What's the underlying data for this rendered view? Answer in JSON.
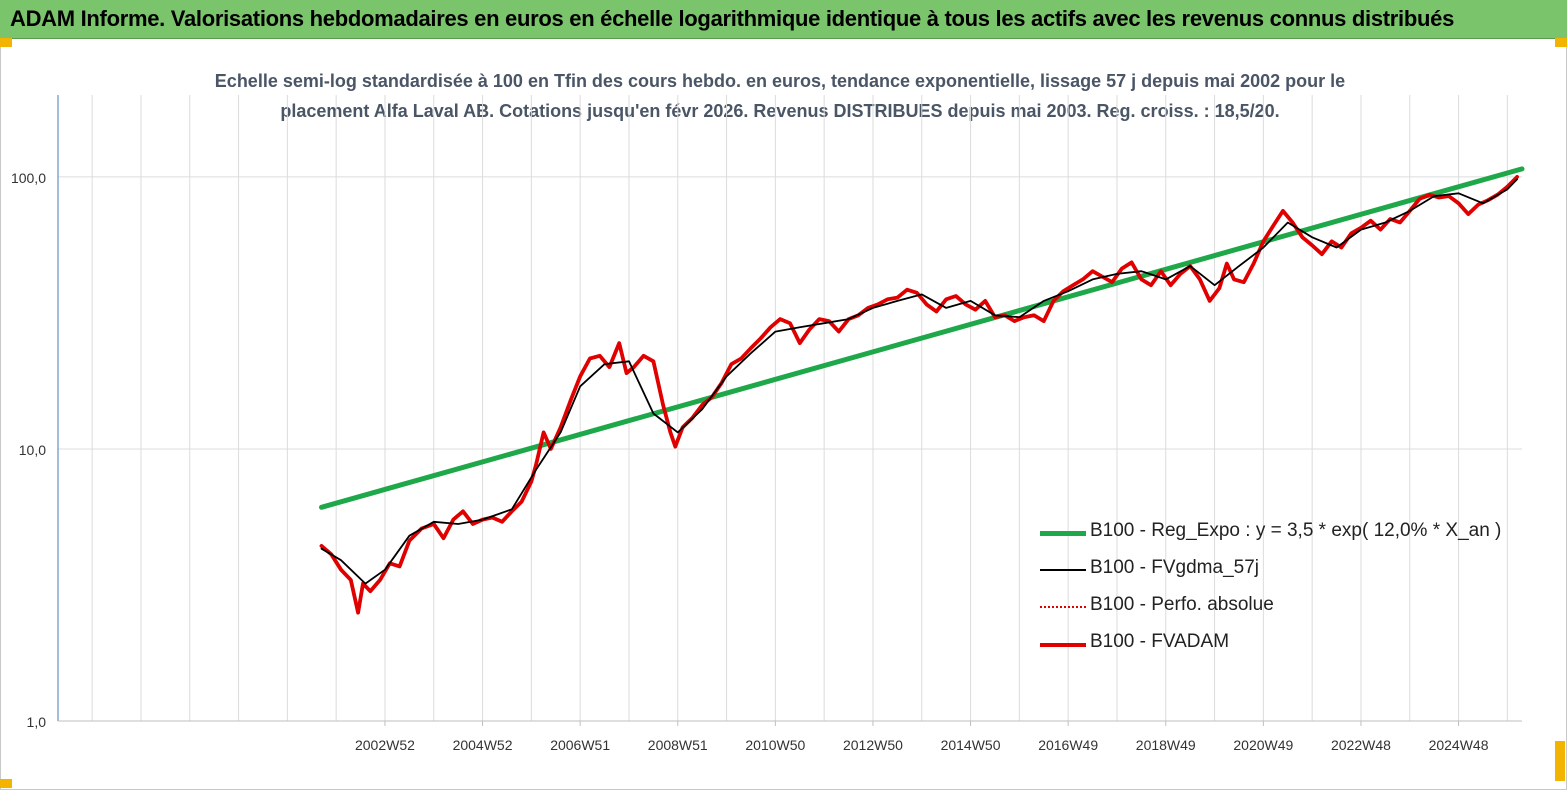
{
  "header": {
    "title": "ADAM Informe. Valorisations hebdomadaires en euros en échelle logarithmique identique à tous les actifs avec les revenus connus distribués"
  },
  "chart_data": {
    "type": "line",
    "title_line1": "Echelle semi-log standardisée à 100 en Tfin des cours hebdo. en euros, tendance exponentielle, lissage 57 j depuis mai 2002 pour le",
    "title_line2": "placement Alfa Laval AB. Cotations jusqu'en févr 2026. Revenus DISTRIBUES depuis mai 2003. Reg. croiss. : 18,5/20.",
    "y_scale": "log",
    "ylim": [
      1,
      200
    ],
    "xlim": [
      1996.3,
      2026.3
    ],
    "y_ticks": [
      {
        "value": 1,
        "label": "1,0"
      },
      {
        "value": 10,
        "label": "10,0"
      },
      {
        "value": 100,
        "label": "100,0"
      }
    ],
    "x_ticks": [
      {
        "value": 2003.0,
        "label": "2002W52"
      },
      {
        "value": 2005.0,
        "label": "2004W52"
      },
      {
        "value": 2007.0,
        "label": "2006W51"
      },
      {
        "value": 2009.0,
        "label": "2008W51"
      },
      {
        "value": 2011.0,
        "label": "2010W50"
      },
      {
        "value": 2013.0,
        "label": "2012W50"
      },
      {
        "value": 2015.0,
        "label": "2014W50"
      },
      {
        "value": 2017.0,
        "label": "2016W49"
      },
      {
        "value": 2019.0,
        "label": "2018W49"
      },
      {
        "value": 2021.0,
        "label": "2020W49"
      },
      {
        "value": 2023.0,
        "label": "2022W48"
      },
      {
        "value": 2025.0,
        "label": "2024W48"
      }
    ],
    "grid": true,
    "legend_position": "bottom-right",
    "series": [
      {
        "name": "B100 - Reg_Expo : y = 3,5 * exp( 12,0% *  X_an )",
        "color": "#1fa84a",
        "style": "thick",
        "x": [
          2001.7,
          2026.3
        ],
        "y": [
          6.1,
          107
        ]
      },
      {
        "name": "B100 - FVgdma_57j",
        "color": "#000000",
        "style": "thin",
        "x": [
          2001.7,
          2002.1,
          2002.6,
          2003.0,
          2003.5,
          2004.0,
          2004.5,
          2005.0,
          2005.6,
          2006.1,
          2006.6,
          2007.0,
          2007.5,
          2008.0,
          2008.5,
          2009.0,
          2009.5,
          2010.0,
          2010.5,
          2011.0,
          2011.5,
          2012.0,
          2012.5,
          2013.0,
          2013.5,
          2014.0,
          2014.5,
          2015.0,
          2015.5,
          2016.0,
          2016.5,
          2017.0,
          2017.5,
          2018.0,
          2018.5,
          2019.0,
          2019.5,
          2020.0,
          2020.5,
          2021.0,
          2021.5,
          2022.0,
          2022.5,
          2023.0,
          2023.5,
          2024.0,
          2024.5,
          2025.0,
          2025.5,
          2026.0,
          2026.2
        ],
        "y": [
          4.3,
          3.9,
          3.2,
          3.6,
          4.8,
          5.4,
          5.3,
          5.5,
          6.0,
          8.4,
          11.5,
          17.0,
          20.5,
          21.0,
          13.5,
          11.5,
          14.0,
          18.5,
          22.5,
          27.0,
          28.0,
          29.0,
          30.0,
          33.0,
          35.0,
          37.0,
          33.0,
          35.0,
          31.0,
          30.5,
          35.0,
          38.0,
          42.0,
          44.0,
          45.0,
          42.0,
          47.0,
          40.0,
          47.0,
          55.0,
          68.0,
          60.0,
          55.0,
          64.0,
          68.0,
          75.0,
          85.0,
          87.0,
          80.0,
          90.0,
          98.0
        ]
      },
      {
        "name": "B100 - Perfo. absolue",
        "color": "#e10000",
        "style": "dotted",
        "x": [],
        "y": []
      },
      {
        "name": "B100 - FVADAM",
        "color": "#e10000",
        "style": "thick",
        "x": [
          2001.7,
          2001.9,
          2002.1,
          2002.3,
          2002.45,
          2002.55,
          2002.7,
          2002.9,
          2003.1,
          2003.3,
          2003.5,
          2003.75,
          2004.0,
          2004.2,
          2004.4,
          2004.6,
          2004.8,
          2005.0,
          2005.2,
          2005.4,
          2005.6,
          2005.8,
          2006.0,
          2006.1,
          2006.25,
          2006.4,
          2006.6,
          2006.8,
          2007.0,
          2007.2,
          2007.4,
          2007.6,
          2007.8,
          2007.95,
          2008.1,
          2008.3,
          2008.5,
          2008.7,
          2008.85,
          2008.95,
          2009.1,
          2009.3,
          2009.5,
          2009.7,
          2009.9,
          2010.1,
          2010.3,
          2010.5,
          2010.7,
          2010.9,
          2011.1,
          2011.3,
          2011.5,
          2011.7,
          2011.9,
          2012.1,
          2012.3,
          2012.5,
          2012.7,
          2012.9,
          2013.1,
          2013.3,
          2013.5,
          2013.7,
          2013.9,
          2014.1,
          2014.3,
          2014.5,
          2014.7,
          2014.9,
          2015.1,
          2015.3,
          2015.5,
          2015.7,
          2015.9,
          2016.1,
          2016.3,
          2016.5,
          2016.7,
          2016.9,
          2017.1,
          2017.3,
          2017.5,
          2017.7,
          2017.9,
          2018.1,
          2018.3,
          2018.5,
          2018.7,
          2018.9,
          2019.1,
          2019.3,
          2019.5,
          2019.7,
          2019.9,
          2020.1,
          2020.25,
          2020.4,
          2020.6,
          2020.8,
          2021.0,
          2021.2,
          2021.4,
          2021.6,
          2021.8,
          2022.0,
          2022.2,
          2022.4,
          2022.6,
          2022.8,
          2023.0,
          2023.2,
          2023.4,
          2023.6,
          2023.8,
          2024.0,
          2024.2,
          2024.4,
          2024.6,
          2024.8,
          2025.0,
          2025.2,
          2025.4,
          2025.6,
          2025.8,
          2026.0,
          2026.2
        ],
        "y": [
          4.4,
          4.1,
          3.6,
          3.3,
          2.5,
          3.2,
          3.0,
          3.3,
          3.8,
          3.7,
          4.6,
          5.1,
          5.3,
          4.7,
          5.5,
          5.9,
          5.3,
          5.5,
          5.6,
          5.4,
          5.9,
          6.4,
          7.6,
          8.8,
          11.5,
          10.0,
          12.0,
          15.0,
          18.5,
          21.5,
          22.0,
          20.0,
          24.5,
          19.0,
          20.0,
          22.0,
          21.0,
          14.5,
          11.5,
          10.2,
          12.0,
          13.0,
          14.5,
          15.5,
          17.5,
          20.5,
          21.5,
          23.5,
          25.5,
          28.0,
          30.0,
          29.0,
          24.5,
          27.5,
          30.0,
          29.5,
          27.0,
          30.0,
          31.0,
          33.0,
          34.0,
          35.5,
          36.0,
          38.5,
          37.5,
          34.0,
          32.0,
          35.5,
          36.5,
          34.0,
          32.5,
          35.0,
          30.5,
          31.0,
          29.5,
          30.5,
          31.0,
          29.5,
          35.0,
          38.0,
          40.0,
          42.0,
          45.0,
          43.0,
          41.0,
          46.0,
          48.5,
          42.0,
          40.0,
          45.0,
          40.0,
          44.0,
          47.0,
          42.0,
          35.0,
          39.0,
          48.0,
          42.0,
          41.0,
          48.0,
          58.0,
          66.0,
          75.0,
          68.0,
          60.0,
          56.0,
          52.0,
          58.0,
          55.0,
          62.0,
          65.0,
          69.0,
          64.0,
          70.0,
          68.0,
          75.0,
          83.0,
          86.0,
          84.0,
          85.0,
          80.0,
          73.0,
          79.0,
          82.0,
          86.0,
          92.0,
          100.0
        ]
      }
    ]
  }
}
